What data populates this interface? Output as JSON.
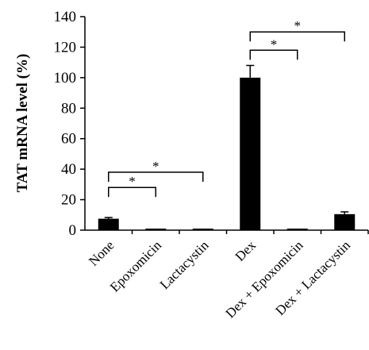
{
  "chart_data": {
    "type": "bar",
    "ylabel": "TAT mRNA level (%)",
    "xlabel": "",
    "title": "",
    "ylim": [
      0,
      140
    ],
    "yticks": [
      0,
      20,
      40,
      60,
      80,
      100,
      120,
      140
    ],
    "categories": [
      "None",
      "Epoxomicin",
      "Lactacystin",
      "Dex",
      "Dex + Epoxomicin",
      "Dex + Lactacystin"
    ],
    "values": [
      7.5,
      1.0,
      1.0,
      100.0,
      1.0,
      10.5
    ],
    "errors": [
      0.8,
      0.2,
      0.2,
      8.0,
      0.2,
      1.5
    ],
    "bar_color": "#000000",
    "grid": false,
    "legend": "none",
    "significance": [
      {
        "from": 0,
        "to": 1,
        "label": "*",
        "y": 28
      },
      {
        "from": 0,
        "to": 2,
        "label": "*",
        "y": 38
      },
      {
        "from": 3,
        "to": 4,
        "label": "*",
        "y": 118
      },
      {
        "from": 3,
        "to": 5,
        "label": "*",
        "y": 130
      }
    ]
  }
}
